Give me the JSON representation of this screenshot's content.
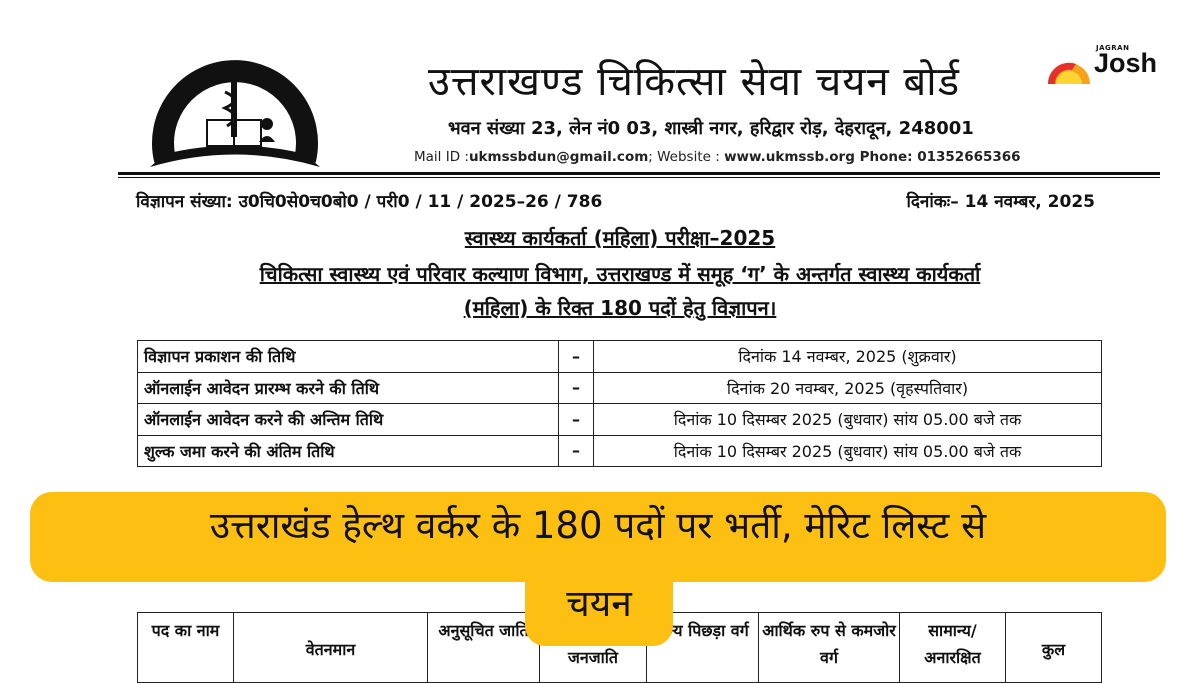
{
  "header": {
    "logo_name": "उत्तराखण्ड चिकित्सा सेवा चयन बोर्ड",
    "title": "उत्तराखण्ड चिकित्सा सेवा चयन बोर्ड",
    "address": "भवन संख्या 23, लेन नं0 03, शास्त्री नगर, हरिद्वार रोड़, देहरादून, 248001",
    "mail_label": "Mail ID :",
    "mail": "ukmssbdun@gmail.com",
    "website_label": "; Website : ",
    "website": "www.ukmssb.org",
    "phone_label": " Phone: ",
    "phone": "01352665366"
  },
  "brand": {
    "top": "JAGRAN",
    "name": "Josh"
  },
  "notice": {
    "ref": "विज्ञापन संख्या: उ0चि0से0च0बो0 / परी0 / 11 / 2025–26 / 786",
    "date": "दिनांकः– 14 नवम्बर, 2025",
    "exam_title": "स्वास्थ्य कार्यकर्ता (महिला) परीक्षा–2025",
    "subtitle_line1": "चिकित्सा स्वास्थ्य एवं परिवार कल्याण विभाग, उत्तराखण्ड में समूह ‘ग’ के अन्तर्गत स्वास्थ्य कार्यकर्ता",
    "subtitle_line2": "(महिला) के रिक्त 180 पदों हेतु विज्ञापन।"
  },
  "dates_table": [
    {
      "label": "विज्ञापन प्रकाशन की तिथि",
      "sep": "–",
      "value": "दिनांक 14 नवम्बर, 2025 (शुक्रवार)"
    },
    {
      "label": "ऑनलाईन आवेदन प्रारम्भ करने की तिथि",
      "sep": "–",
      "value": "दिनांक 20 नवम्बर, 2025 (वृहस्पतिवार)"
    },
    {
      "label": "ऑनलाईन आवेदन करने की अन्तिम तिथि",
      "sep": "–",
      "value": "दिनांक 10 दिसम्बर 2025 (बुधवार)  सांय 05.00 बजे तक"
    },
    {
      "label": "शुल्क जमा करने की अंतिम तिथि",
      "sep": "–",
      "value": "दिनांक 10 दिसम्बर 2025 (बुधवार)  सांय 05.00 बजे तक"
    }
  ],
  "posts_table": {
    "headers": [
      "पद का नाम",
      "वेतनमान",
      "अनुसूचित जाति",
      "अनुसूचित जनजाति",
      "अन्य पिछड़ा वर्ग",
      "आर्थिक रुप से कमजोर वर्ग",
      "सामान्य/ अनारक्षित",
      "कुल"
    ]
  },
  "banner": {
    "line1": "उत्तराखंड हेल्थ वर्कर के 180 पदों पर भर्ती, मेरिट लिस्ट से",
    "line2": "चयन",
    "color": "#FDBF12"
  }
}
